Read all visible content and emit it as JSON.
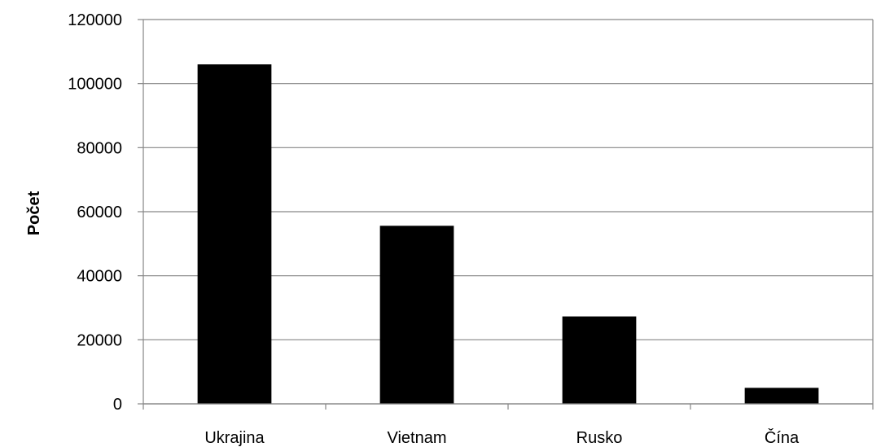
{
  "chart_data": {
    "type": "bar",
    "title": "",
    "xlabel": "",
    "ylabel": "Počet",
    "categories": [
      "Ukrajina",
      "Vietnam",
      "Rusko",
      "Čína"
    ],
    "series": [
      {
        "values": [
          106000,
          55600,
          27300,
          5000
        ]
      }
    ],
    "ylim": [
      0,
      120000
    ],
    "yticks": [
      0,
      20000,
      40000,
      60000,
      80000,
      100000,
      120000
    ],
    "ytick_labels": [
      "0",
      "20000",
      "40000",
      "60000",
      "80000",
      "100000",
      "120000"
    ],
    "grid": true,
    "legend": "none",
    "colors": {
      "bar": "#000000",
      "grid": "#868686",
      "axis": "#868686",
      "background": "#ffffff"
    }
  }
}
